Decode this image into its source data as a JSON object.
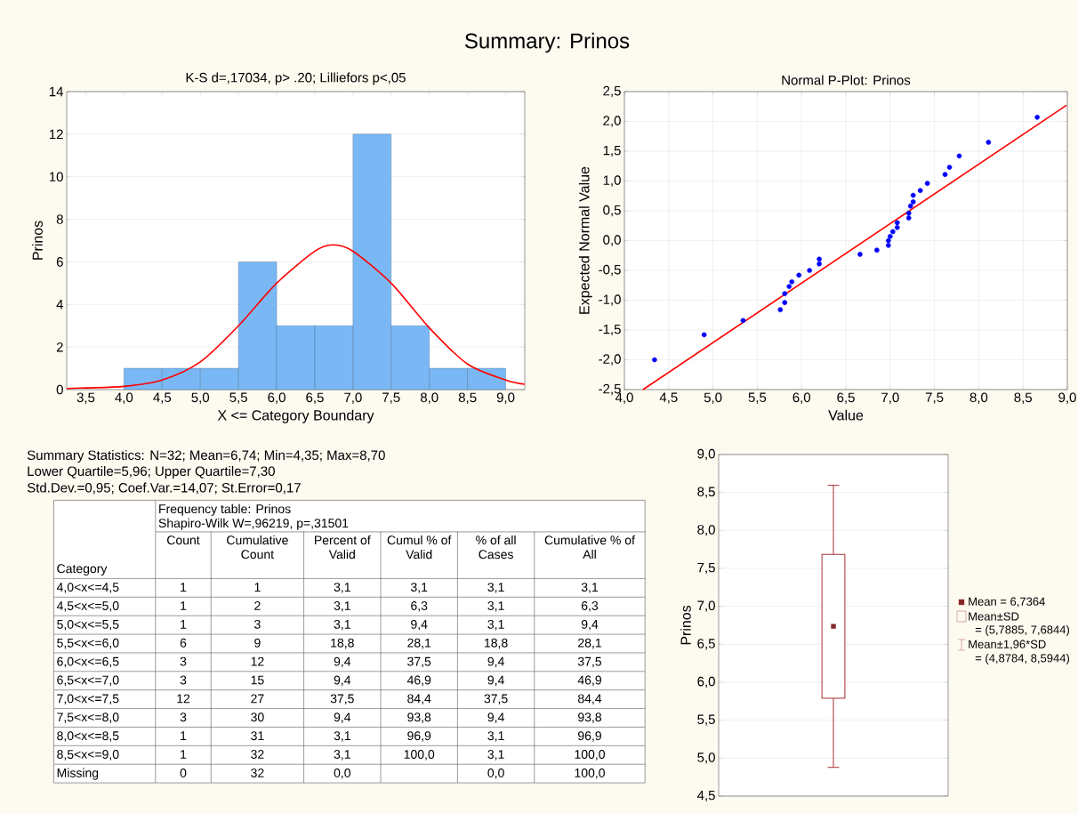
{
  "chart_data": [
    {
      "type": "histogram",
      "title": "Summary: Prinos",
      "subtitle": "K-S d=,17034, p> .20; Lilliefors p<,05",
      "xlabel": "X <= Category Boundary",
      "ylabel": "Prinos",
      "series": [
        {
          "type": "histogram",
          "color": "#7ab8f5",
          "bins": [
            4.0,
            4.5,
            5.0,
            5.5,
            6.0,
            6.5,
            7.0,
            7.5,
            8.0,
            8.5,
            9.0
          ],
          "values": [
            1,
            1,
            1,
            6,
            3,
            3,
            12,
            3,
            1,
            1
          ]
        },
        {
          "type": "line",
          "color": "#ff0000",
          "x": [
            3.25,
            3.5,
            4.0,
            4.5,
            5.0,
            5.5,
            6.0,
            6.5,
            6.74,
            7.0,
            7.5,
            8.0,
            8.5,
            9.0,
            9.25
          ],
          "values": [
            0.05,
            0.08,
            0.15,
            0.45,
            1.3,
            3.0,
            5.0,
            6.5,
            6.8,
            6.5,
            5.0,
            2.9,
            1.2,
            0.45,
            0.25
          ]
        }
      ],
      "xlim": [
        3.25,
        9.25
      ],
      "ylim": [
        0,
        14
      ],
      "xticks": [
        {
          "value": 3.5,
          "label": "3,5"
        },
        {
          "value": 4.0,
          "label": "4,0"
        },
        {
          "value": 4.5,
          "label": "4,5"
        },
        {
          "value": 5.0,
          "label": "5,0"
        },
        {
          "value": 5.5,
          "label": "5,5"
        },
        {
          "value": 6.0,
          "label": "6,0"
        },
        {
          "value": 6.5,
          "label": "6,5"
        },
        {
          "value": 7.0,
          "label": "7,0"
        },
        {
          "value": 7.5,
          "label": "7,5"
        },
        {
          "value": 8.0,
          "label": "8,0"
        },
        {
          "value": 8.5,
          "label": "8,5"
        },
        {
          "value": 9.0,
          "label": "9,0"
        }
      ],
      "yticks": [
        0,
        2,
        4,
        6,
        8,
        10,
        12,
        14
      ],
      "grid": "y"
    },
    {
      "type": "scatter",
      "title": "Normal P-Plot: Prinos",
      "xlabel": "Value",
      "ylabel": "Expected Normal Value",
      "series": [
        {
          "type": "scatter",
          "color": "#0000ff",
          "marker": "circle",
          "x": [
            4.34,
            4.9,
            5.34,
            5.76,
            5.81,
            5.81,
            5.86,
            5.89,
            5.97,
            6.09,
            6.2,
            6.2,
            6.66,
            6.85,
            6.98,
            6.98,
            7.0,
            7.03,
            7.08,
            7.08,
            7.21,
            7.21,
            7.23,
            7.26,
            7.26,
            7.34,
            7.42,
            7.62,
            7.67,
            7.78,
            8.11,
            8.66
          ],
          "values": [
            -2.0,
            -1.58,
            -1.34,
            -1.16,
            -1.04,
            -0.89,
            -0.77,
            -0.69,
            -0.58,
            -0.5,
            -0.39,
            -0.31,
            -0.23,
            -0.16,
            -0.08,
            0.0,
            0.07,
            0.15,
            0.22,
            0.3,
            0.38,
            0.46,
            0.58,
            0.65,
            0.76,
            0.84,
            0.96,
            1.11,
            1.23,
            1.42,
            1.65,
            2.07
          ]
        },
        {
          "type": "line",
          "color": "#ff0000",
          "x": [
            4.21,
            8.99
          ],
          "values": [
            -2.5,
            2.27
          ]
        }
      ],
      "xlim": [
        4,
        9
      ],
      "ylim": [
        -2.5,
        2.5
      ],
      "xticks": [
        {
          "value": 4.0,
          "label": "4,0"
        },
        {
          "value": 4.5,
          "label": "4,5"
        },
        {
          "value": 5.0,
          "label": "5,0"
        },
        {
          "value": 5.5,
          "label": "5,5"
        },
        {
          "value": 6.0,
          "label": "6,0"
        },
        {
          "value": 6.5,
          "label": "6,5"
        },
        {
          "value": 7.0,
          "label": "7,0"
        },
        {
          "value": 7.5,
          "label": "7,5"
        },
        {
          "value": 8.0,
          "label": "8,0"
        },
        {
          "value": 8.5,
          "label": "8,5"
        },
        {
          "value": 9.0,
          "label": "9,0"
        }
      ],
      "yticks": [
        {
          "value": -2.5,
          "label": "-2,5"
        },
        {
          "value": -2.0,
          "label": "-2,0"
        },
        {
          "value": -1.5,
          "label": "-1,5"
        },
        {
          "value": -1.0,
          "label": "-1,0"
        },
        {
          "value": -0.5,
          "label": "-0,5"
        },
        {
          "value": 0.0,
          "label": "0,0"
        },
        {
          "value": 0.5,
          "label": "0,5"
        },
        {
          "value": 1.0,
          "label": "1,0"
        },
        {
          "value": 1.5,
          "label": "1,5"
        },
        {
          "value": 2.0,
          "label": "2,0"
        },
        {
          "value": 2.5,
          "label": "2,5"
        }
      ],
      "grid": true
    },
    {
      "type": "box",
      "ylabel": "Prinos",
      "categories": [
        null
      ],
      "color": "#a83232",
      "boxes": [
        {
          "low": 4.8784,
          "q1": 5.7885,
          "q3": 7.6844,
          "high": 8.5944,
          "mean": 6.7364
        }
      ],
      "ylim": [
        4.5,
        9.0
      ],
      "yticks": [
        {
          "value": 4.5,
          "label": "4,5"
        },
        {
          "value": 5.0,
          "label": "5,0"
        },
        {
          "value": 5.5,
          "label": "5,5"
        },
        {
          "value": 6.0,
          "label": "6,0"
        },
        {
          "value": 6.5,
          "label": "6,5"
        },
        {
          "value": 7.0,
          "label": "7,0"
        },
        {
          "value": 7.5,
          "label": "7,5"
        },
        {
          "value": 8.0,
          "label": "8,0"
        },
        {
          "value": 8.5,
          "label": "8,5"
        },
        {
          "value": 9.0,
          "label": "9,0"
        }
      ],
      "grid": "y",
      "tick_labels": "y",
      "annotations": [
        "Mean = 6,7364",
        "Mean±SD",
        "= (5,7885, 7,6844)",
        "Mean±1,96*SD",
        "= (4,8784, 8,5944)"
      ]
    },
    {
      "type": "other",
      "title": "Frequency table: Prinos",
      "subtitle": "Shapiro-Wilk W=,96219, p=,31501",
      "ylabel": "Category",
      "annotations": [
        "Summary Statistics: N=32; Mean=6,74; Min=4,35; Max=8,70",
        "Lower Quartile=5,96; Upper Quartile=7,30",
        "Std.Dev.=0,95; Coef.Var.=14,07; St.Error=0,17"
      ],
      "categories": [
        "Count",
        "Cumulative Count",
        "Percent of Valid",
        "Cumul % of Valid",
        "% of all Cases",
        "Cumulative % of All"
      ],
      "y_categories": [
        "4,0<x<=4,5",
        "4,5<x<=5,0",
        "5,0<x<=5,5",
        "5,5<x<=6,0",
        "6,0<x<=6,5",
        "6,5<x<=7,0",
        "7,0<x<=7,5",
        "7,5<x<=8,0",
        "8,0<x<=8,5",
        "8,5<x<=9,0",
        "Missing"
      ],
      "cell_labels": [
        [
          "1",
          "1",
          "3,1",
          "3,1",
          "3,1",
          "3,1"
        ],
        [
          "1",
          "2",
          "3,1",
          "6,3",
          "3,1",
          "6,3"
        ],
        [
          "1",
          "3",
          "3,1",
          "9,4",
          "3,1",
          "9,4"
        ],
        [
          "6",
          "9",
          "18,8",
          "28,1",
          "18,8",
          "28,1"
        ],
        [
          "3",
          "12",
          "9,4",
          "37,5",
          "9,4",
          "37,5"
        ],
        [
          "3",
          "15",
          "9,4",
          "46,9",
          "9,4",
          "46,9"
        ],
        [
          "12",
          "27",
          "37,5",
          "84,4",
          "37,5",
          "84,4"
        ],
        [
          "3",
          "30",
          "9,4",
          "93,8",
          "9,4",
          "93,8"
        ],
        [
          "1",
          "31",
          "3,1",
          "96,9",
          "3,1",
          "96,9"
        ],
        [
          "1",
          "32",
          "3,1",
          "100,0",
          "3,1",
          "100,0"
        ],
        [
          "0",
          "32",
          "0,0",
          null,
          "0,0",
          "100,0"
        ]
      ]
    }
  ]
}
